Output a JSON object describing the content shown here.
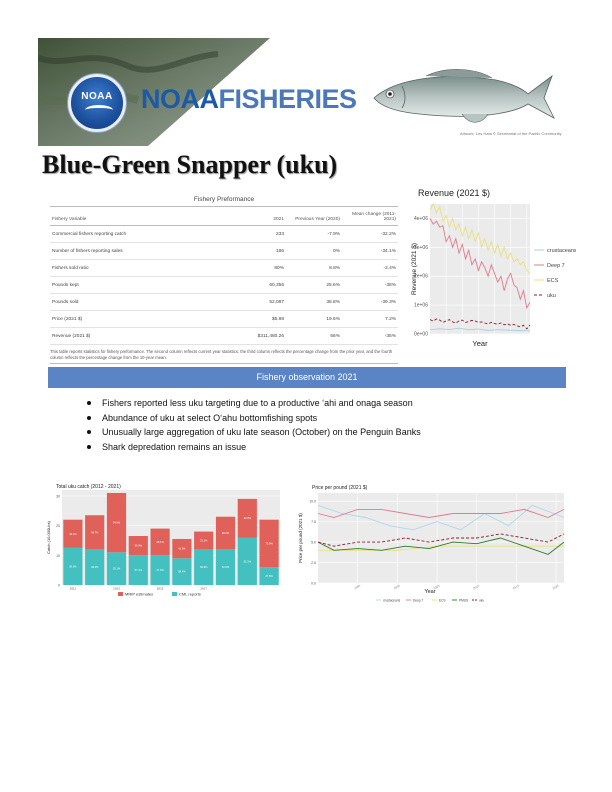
{
  "header": {
    "logo_text": "NOAA",
    "brand_part1": "NOAA",
    "brand_part2": "FISHERIES",
    "fish_credit": "Artwork: Les Hata © Secretariat of the Pacific Community"
  },
  "title": "Blue-Green Snapper (uku)",
  "table": {
    "title": "Fishery Preformance",
    "headers": [
      "Fishery Variable",
      "2021",
      "Previous Year (2020)",
      "Mean change (2011-2021)"
    ],
    "rows": [
      [
        "Commercial fishers reporting catch",
        "233",
        "-7.9%",
        "-32.2%"
      ],
      [
        "Number of fishers reporting sales",
        "186",
        "0%",
        "-34.1%"
      ],
      [
        "Fishers sold ratio",
        "80%",
        "8.8%",
        "-2.4%"
      ],
      [
        "Pounds kept",
        "60,356",
        "25.6%",
        "-38%"
      ],
      [
        "Pounds sold",
        "52,087",
        "38.8%",
        "-39.3%"
      ],
      [
        "Price (2021 $)",
        "$5.98",
        "19.6%",
        "7.2%"
      ],
      [
        "Revenue (2021 $)",
        "$311,480.26",
        "66%",
        "-35%"
      ]
    ],
    "note": "This table reports statistics for fishery preformance. The second column reflects current year statistics, the third column reflects the percentage change from the prior year, and the fourth column reflects the percentage change from the 10-year mean."
  },
  "observation": {
    "heading": "Fishery observation 2021",
    "bullets": [
      "Fishers reported less uku targeting due to a productive ‘ahi and onaga season",
      "Abundance of uku at select O‘ahu bottomfishing spots",
      "Unusually large aggregation of uku late season (October) on the Penguin Banks",
      "Shark depredation remains an issue"
    ]
  },
  "chart_data": [
    {
      "type": "line",
      "title": "Revenue (2021 $)",
      "xlabel": "Year",
      "ylabel": "Revenue (2021 $)",
      "yticks": [
        "0e+00",
        "1e+06",
        "2e+06",
        "3e+06",
        "4e+06"
      ],
      "ylim": [
        0,
        4500000
      ],
      "xlim": [
        1990,
        2021
      ],
      "grid": true,
      "legend": "right",
      "series": [
        {
          "name": "crustaceans",
          "color": "#a8d0e0",
          "dash": false,
          "x": [
            1990,
            1993,
            1996,
            1999,
            2002,
            2005,
            2008,
            2011,
            2014,
            2017,
            2021
          ],
          "y": [
            150000,
            180000,
            160000,
            200000,
            150000,
            170000,
            120000,
            150000,
            130000,
            120000,
            110000
          ]
        },
        {
          "name": "Deep 7",
          "color": "#e07a90",
          "dash": false,
          "x": [
            1990,
            1991,
            1992,
            1993,
            1994,
            1995,
            1996,
            1997,
            1998,
            1999,
            2000,
            2001,
            2002,
            2003,
            2004,
            2005,
            2006,
            2007,
            2008,
            2009,
            2010,
            2011,
            2012,
            2013,
            2014,
            2015,
            2016,
            2017,
            2018,
            2019,
            2020,
            2021
          ],
          "y": [
            4000000,
            3800000,
            3900000,
            3700000,
            3750000,
            3200000,
            3400000,
            3000000,
            3300000,
            2800000,
            3100000,
            2600000,
            2900000,
            2400000,
            2600000,
            2200000,
            2500000,
            2300000,
            2000000,
            2400000,
            2100000,
            1800000,
            2000000,
            1500000,
            1900000,
            2100000,
            1700000,
            1600000,
            1200000,
            1500000,
            900000,
            1100000
          ]
        },
        {
          "name": "ECS",
          "color": "#e8e080",
          "dash": false,
          "x": [
            1990,
            1991,
            1992,
            1993,
            1994,
            1995,
            1996,
            1997,
            1998,
            1999,
            2000,
            2001,
            2002,
            2003,
            2004,
            2005,
            2006,
            2007,
            2008,
            2009,
            2010,
            2011,
            2012,
            2013,
            2014,
            2015,
            2016,
            2017,
            2018,
            2019,
            2020,
            2021
          ],
          "y": [
            4300000,
            4500000,
            4200000,
            4400000,
            3900000,
            4100000,
            3700000,
            4000000,
            3600000,
            3800000,
            3400000,
            3700000,
            3300000,
            3600000,
            3200000,
            3500000,
            3000000,
            3300000,
            2900000,
            3200000,
            2800000,
            3100000,
            2700000,
            3000000,
            2600000,
            2800000,
            2500000,
            2600000,
            2400000,
            2500000,
            2200000,
            2100000
          ]
        },
        {
          "name": "uku",
          "color": "#8a1a2a",
          "dash": true,
          "x": [
            1990,
            1991,
            1992,
            1993,
            1994,
            1995,
            1996,
            1997,
            1998,
            1999,
            2000,
            2001,
            2002,
            2003,
            2004,
            2005,
            2006,
            2007,
            2008,
            2009,
            2010,
            2011,
            2012,
            2013,
            2014,
            2015,
            2016,
            2017,
            2018,
            2019,
            2020,
            2021
          ],
          "y": [
            500000,
            450000,
            520000,
            480000,
            400000,
            450000,
            500000,
            420000,
            380000,
            450000,
            480000,
            400000,
            430000,
            470000,
            450000,
            400000,
            420000,
            380000,
            350000,
            400000,
            360000,
            340000,
            380000,
            320000,
            350000,
            300000,
            330000,
            280000,
            250000,
            300000,
            180000,
            310000
          ]
        }
      ]
    },
    {
      "type": "bar",
      "title": "Total uku catch (2012 - 2021)",
      "xlabel": "",
      "ylabel": "Catch (10,000Lbs)",
      "yticks": [
        "0",
        "10",
        "20",
        "30"
      ],
      "ylim": [
        0,
        32
      ],
      "xticks": [
        "2011",
        "2013",
        "2015",
        "2017"
      ],
      "legend": "bottom",
      "stacked": true,
      "categories": [
        "2012",
        "2013",
        "2014",
        "2015",
        "2016",
        "2017",
        "2018",
        "2019",
        "2020",
        "2021"
      ],
      "series": [
        {
          "name": "MRIP estimates",
          "color": "#e0605a",
          "values": [
            9.5,
            11.5,
            20,
            6.5,
            9,
            6.5,
            6,
            11,
            13,
            16
          ],
          "labels": [
            "43.4%",
            "48.7%",
            "64.9%",
            "39.9%",
            "48.1%",
            "41.6%",
            "33.1%",
            "48.0%",
            "44.9%",
            "73.9%"
          ]
        },
        {
          "name": "CML reports",
          "color": "#45c0c0",
          "values": [
            12.5,
            12,
            11,
            10,
            10,
            9,
            12,
            12,
            16,
            6
          ],
          "labels": [
            "56.6%",
            "49.2%",
            "35.1%",
            "57.1%",
            "47.6%",
            "58.4%",
            "66.9%",
            "52.0%",
            "55.1%",
            "27.8%"
          ]
        }
      ]
    },
    {
      "type": "line",
      "title": "Price per pound (2021 $)",
      "xlabel": "Year",
      "ylabel": "Price per pound (2021 $)",
      "yticks": [
        "0.0",
        "2.5",
        "5.0",
        "7.5",
        "10.0"
      ],
      "ylim": [
        0,
        11
      ],
      "xlim": [
        1990,
        2021
      ],
      "grid": true,
      "legend": "bottom",
      "series": [
        {
          "name": "crustaceans",
          "color": "#b0d8e8",
          "dash": false,
          "x": [
            1990,
            1993,
            1996,
            1999,
            2002,
            2005,
            2008,
            2011,
            2014,
            2017,
            2021
          ],
          "y": [
            9.5,
            8.5,
            8.0,
            7.0,
            6.5,
            7.5,
            6.5,
            8.5,
            7.0,
            9.5,
            8.0
          ]
        },
        {
          "name": "Deep 7",
          "color": "#e07a90",
          "dash": false,
          "x": [
            1990,
            1992,
            1995,
            1998,
            2001,
            2004,
            2007,
            2010,
            2013,
            2016,
            2019,
            2021
          ],
          "y": [
            8.5,
            8.0,
            9.0,
            9.0,
            8.5,
            8.0,
            8.5,
            8.5,
            8.5,
            9.0,
            8.0,
            9.0
          ]
        },
        {
          "name": "ECS",
          "color": "#e8e080",
          "dash": false,
          "x": [
            1990,
            1995,
            2000,
            2005,
            2010,
            2015,
            2021
          ],
          "y": [
            4.0,
            4.0,
            4.0,
            4.5,
            4.5,
            4.5,
            4.5
          ]
        },
        {
          "name": "PMUS",
          "color": "#2a7a2a",
          "dash": false,
          "x": [
            1990,
            1992,
            1995,
            1998,
            2001,
            2004,
            2007,
            2010,
            2013,
            2016,
            2019,
            2021
          ],
          "y": [
            5.0,
            4.0,
            4.2,
            4.0,
            4.5,
            4.2,
            5.0,
            4.8,
            5.5,
            4.5,
            3.5,
            5.0
          ]
        },
        {
          "name": "uku",
          "color": "#8a1a2a",
          "dash": true,
          "x": [
            1990,
            1992,
            1995,
            1998,
            2001,
            2004,
            2007,
            2010,
            2013,
            2016,
            2019,
            2021
          ],
          "y": [
            5.0,
            4.5,
            5.0,
            5.0,
            5.5,
            5.0,
            5.5,
            5.5,
            6.0,
            5.5,
            5.0,
            6.0
          ]
        }
      ]
    }
  ]
}
